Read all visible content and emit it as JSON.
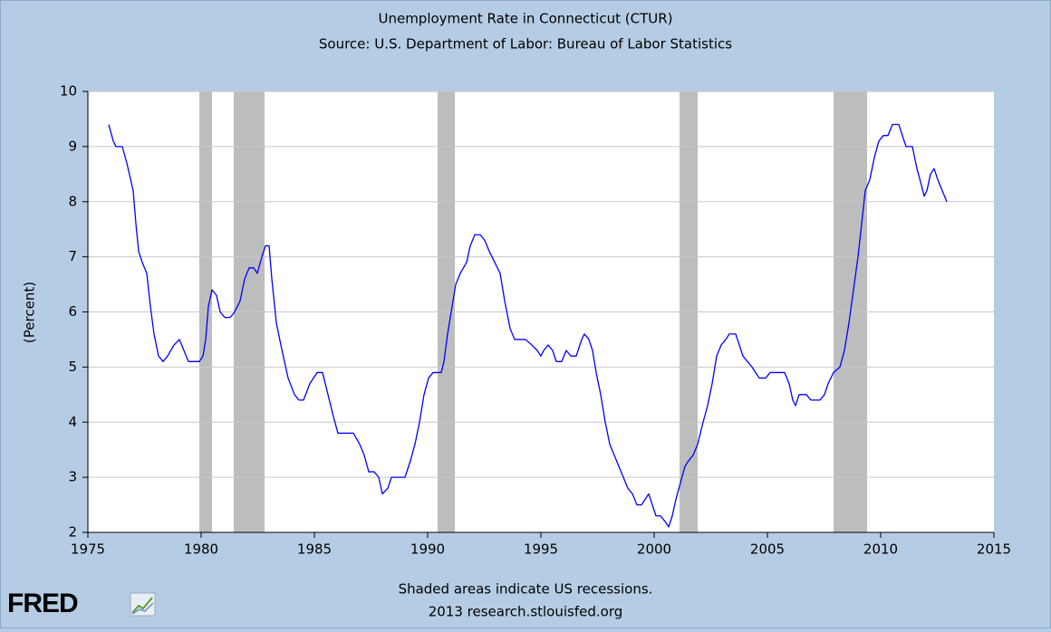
{
  "chart_data": {
    "type": "line",
    "title": "Unemployment Rate in Connecticut (CTUR)",
    "subtitle": "Source: U.S. Department of Labor: Bureau of Labor Statistics",
    "y_label": "(Percent)",
    "notes": [
      "Shaded areas indicate US recessions.",
      "2013 research.stlouisfed.org"
    ],
    "logo": "FRED",
    "color": "#0000ff",
    "recession_color": "#bdbdbd",
    "grid": true,
    "xlim": [
      1975,
      2015
    ],
    "xticks": [
      1975,
      1980,
      1985,
      1990,
      1995,
      2000,
      2005,
      2010,
      2015
    ],
    "ylim": [
      2,
      10
    ],
    "yticks": [
      2,
      3,
      4,
      5,
      6,
      7,
      8,
      9,
      10
    ],
    "recessions": [
      [
        1979.92,
        1980.48
      ],
      [
        1981.44,
        1982.8
      ],
      [
        1990.44,
        1991.2
      ],
      [
        2001.12,
        2001.92
      ],
      [
        2007.92,
        2009.4
      ]
    ],
    "x": [
      1975.92,
      1976.12,
      1976.24,
      1976.52,
      1976.72,
      1977.0,
      1977.12,
      1977.24,
      1977.4,
      1977.6,
      1977.76,
      1977.92,
      1978.12,
      1978.32,
      1978.52,
      1978.8,
      1979.04,
      1979.24,
      1979.44,
      1979.72,
      1979.92,
      1980.08,
      1980.2,
      1980.32,
      1980.48,
      1980.68,
      1980.84,
      1981.04,
      1981.28,
      1981.48,
      1981.72,
      1981.92,
      1982.12,
      1982.32,
      1982.48,
      1982.68,
      1982.84,
      1983.0,
      1983.12,
      1983.32,
      1983.52,
      1983.84,
      1984.12,
      1984.32,
      1984.52,
      1984.8,
      1985.12,
      1985.36,
      1985.6,
      1985.84,
      1986.04,
      1986.32,
      1986.72,
      1987.0,
      1987.2,
      1987.4,
      1987.64,
      1987.84,
      1988.0,
      1988.24,
      1988.4,
      1988.72,
      1989.0,
      1989.24,
      1989.44,
      1989.64,
      1989.84,
      1990.04,
      1990.24,
      1990.6,
      1990.72,
      1990.88,
      1991.04,
      1991.24,
      1991.44,
      1991.72,
      1991.88,
      1992.08,
      1992.32,
      1992.52,
      1992.72,
      1992.96,
      1993.2,
      1993.4,
      1993.64,
      1993.84,
      1994.32,
      1994.6,
      1994.84,
      1995.0,
      1995.12,
      1995.32,
      1995.52,
      1995.68,
      1995.92,
      1996.12,
      1996.32,
      1996.56,
      1996.8,
      1996.92,
      1997.12,
      1997.28,
      1997.44,
      1997.64,
      1997.84,
      1998.04,
      1998.24,
      1998.44,
      1998.64,
      1998.84,
      1999.04,
      1999.24,
      1999.44,
      1999.6,
      1999.76,
      1999.92,
      2000.08,
      2000.28,
      2000.48,
      2000.64,
      2000.8,
      2000.96,
      2001.16,
      2001.36,
      2001.52,
      2001.72,
      2001.92,
      2002.16,
      2002.36,
      2002.56,
      2002.76,
      2002.96,
      2003.16,
      2003.32,
      2003.6,
      2003.76,
      2003.92,
      2004.12,
      2004.32,
      2004.48,
      2004.64,
      2004.92,
      2005.12,
      2005.52,
      2005.76,
      2005.96,
      2006.12,
      2006.24,
      2006.4,
      2006.72,
      2006.92,
      2007.32,
      2007.52,
      2007.68,
      2007.92,
      2008.2,
      2008.4,
      2008.6,
      2008.8,
      2009.0,
      2009.16,
      2009.32,
      2009.52,
      2009.72,
      2009.92,
      2010.12,
      2010.32,
      2010.52,
      2010.8,
      2010.96,
      2011.12,
      2011.4,
      2011.6,
      2011.8,
      2011.92,
      2012.04,
      2012.2,
      2012.36,
      2012.52,
      2012.72,
      2012.92
    ],
    "values": [
      9.4,
      9.1,
      9.0,
      9.0,
      8.7,
      8.2,
      7.6,
      7.1,
      6.9,
      6.7,
      6.1,
      5.6,
      5.2,
      5.1,
      5.2,
      5.4,
      5.5,
      5.3,
      5.1,
      5.1,
      5.1,
      5.2,
      5.5,
      6.1,
      6.4,
      6.3,
      6.0,
      5.9,
      5.9,
      6.0,
      6.2,
      6.6,
      6.8,
      6.8,
      6.7,
      7.0,
      7.2,
      7.2,
      6.6,
      5.8,
      5.4,
      4.8,
      4.5,
      4.4,
      4.4,
      4.7,
      4.9,
      4.9,
      4.5,
      4.1,
      3.8,
      3.8,
      3.8,
      3.6,
      3.4,
      3.1,
      3.1,
      3.0,
      2.7,
      2.8,
      3.0,
      3.0,
      3.0,
      3.3,
      3.6,
      4.0,
      4.5,
      4.8,
      4.9,
      4.9,
      5.1,
      5.6,
      6.0,
      6.5,
      6.7,
      6.9,
      7.2,
      7.4,
      7.4,
      7.3,
      7.1,
      6.9,
      6.7,
      6.2,
      5.7,
      5.5,
      5.5,
      5.4,
      5.3,
      5.2,
      5.3,
      5.4,
      5.3,
      5.1,
      5.1,
      5.3,
      5.2,
      5.2,
      5.5,
      5.6,
      5.5,
      5.3,
      4.9,
      4.5,
      4.0,
      3.6,
      3.4,
      3.2,
      3.0,
      2.8,
      2.7,
      2.5,
      2.5,
      2.6,
      2.7,
      2.5,
      2.3,
      2.3,
      2.2,
      2.1,
      2.3,
      2.6,
      2.9,
      3.2,
      3.3,
      3.4,
      3.6,
      4.0,
      4.3,
      4.7,
      5.2,
      5.4,
      5.5,
      5.6,
      5.6,
      5.4,
      5.2,
      5.1,
      5.0,
      4.9,
      4.8,
      4.8,
      4.9,
      4.9,
      4.9,
      4.7,
      4.4,
      4.3,
      4.5,
      4.5,
      4.4,
      4.4,
      4.5,
      4.7,
      4.9,
      5.0,
      5.3,
      5.8,
      6.4,
      7.0,
      7.6,
      8.2,
      8.4,
      8.8,
      9.1,
      9.2,
      9.2,
      9.4,
      9.4,
      9.2,
      9.0,
      9.0,
      8.6,
      8.3,
      8.1,
      8.2,
      8.5,
      8.6,
      8.4,
      8.2,
      8.0
    ]
  }
}
